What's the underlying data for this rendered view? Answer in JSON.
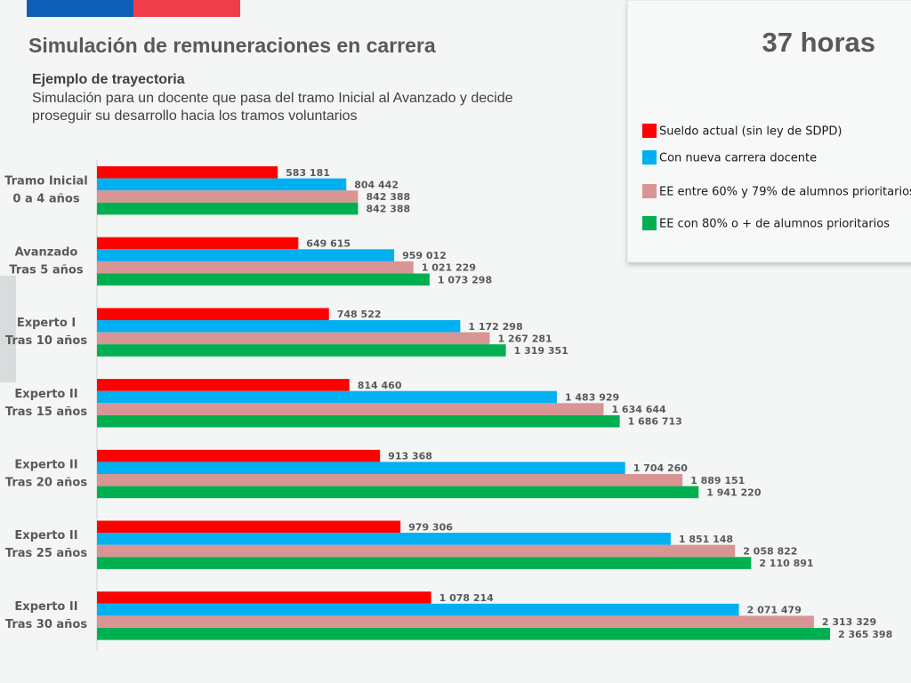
{
  "chart_data": {
    "type": "bar",
    "orientation": "horizontal",
    "title": "Simulación de remuneraciones en carrera",
    "badge": "37 horas",
    "subtitle": "Ejemplo de trayectoria",
    "description": "Simulación para un docente que pasa del tramo Inicial al Avanzado y decide proseguir su desarrollo hacia los tramos voluntarios",
    "categories": [
      [
        "Tramo Inicial",
        "0 a 4 años"
      ],
      [
        "Avanzado",
        "Tras 5 años"
      ],
      [
        "Experto I",
        "Tras 10 años"
      ],
      [
        "Experto II",
        "Tras 15 años"
      ],
      [
        "Experto II",
        "Tras 20 años"
      ],
      [
        "Experto II",
        "Tras 25 años"
      ],
      [
        "Experto II",
        "Tras 30 años"
      ]
    ],
    "series": [
      {
        "name": "Sueldo actual (sin ley de SDPD)",
        "color": "#ff0000",
        "values": [
          583181,
          649615,
          748522,
          814460,
          913368,
          979306,
          1078214
        ],
        "value_labels": [
          "583 181",
          "649 615",
          "748 522",
          "814 460",
          "913 368",
          "979 306",
          "1 078 214"
        ]
      },
      {
        "name": "Con nueva carrera docente",
        "color": "#00b0f0",
        "values": [
          804442,
          959012,
          1172298,
          1483929,
          1704260,
          1851148,
          2071479
        ],
        "value_labels": [
          "804 442",
          "959 012",
          "1 172 298",
          "1 483 929",
          "1 704 260",
          "1 851 148",
          "2 071 479"
        ]
      },
      {
        "name": "EE entre 60% y  79% de alumnos prioritarios",
        "color": "#d99594",
        "values": [
          842388,
          1021229,
          1267281,
          1634644,
          1889151,
          2058822,
          2313329
        ],
        "value_labels": [
          "842 388",
          "1 021 229",
          "1 267 281",
          "1 634 644",
          "1 889 151",
          "2 058 822",
          "2 313 329"
        ]
      },
      {
        "name": "EE con 80% o +  de alumnos prioritarios",
        "color": "#00b050",
        "values": [
          842388,
          1073298,
          1319351,
          1686713,
          1941220,
          2110891,
          2365398
        ],
        "value_labels": [
          "842 388",
          "1 073 298",
          "1 319 351",
          "1 686 713",
          "1 941 220",
          "2 110 891",
          "2 365 398"
        ]
      }
    ]
  }
}
